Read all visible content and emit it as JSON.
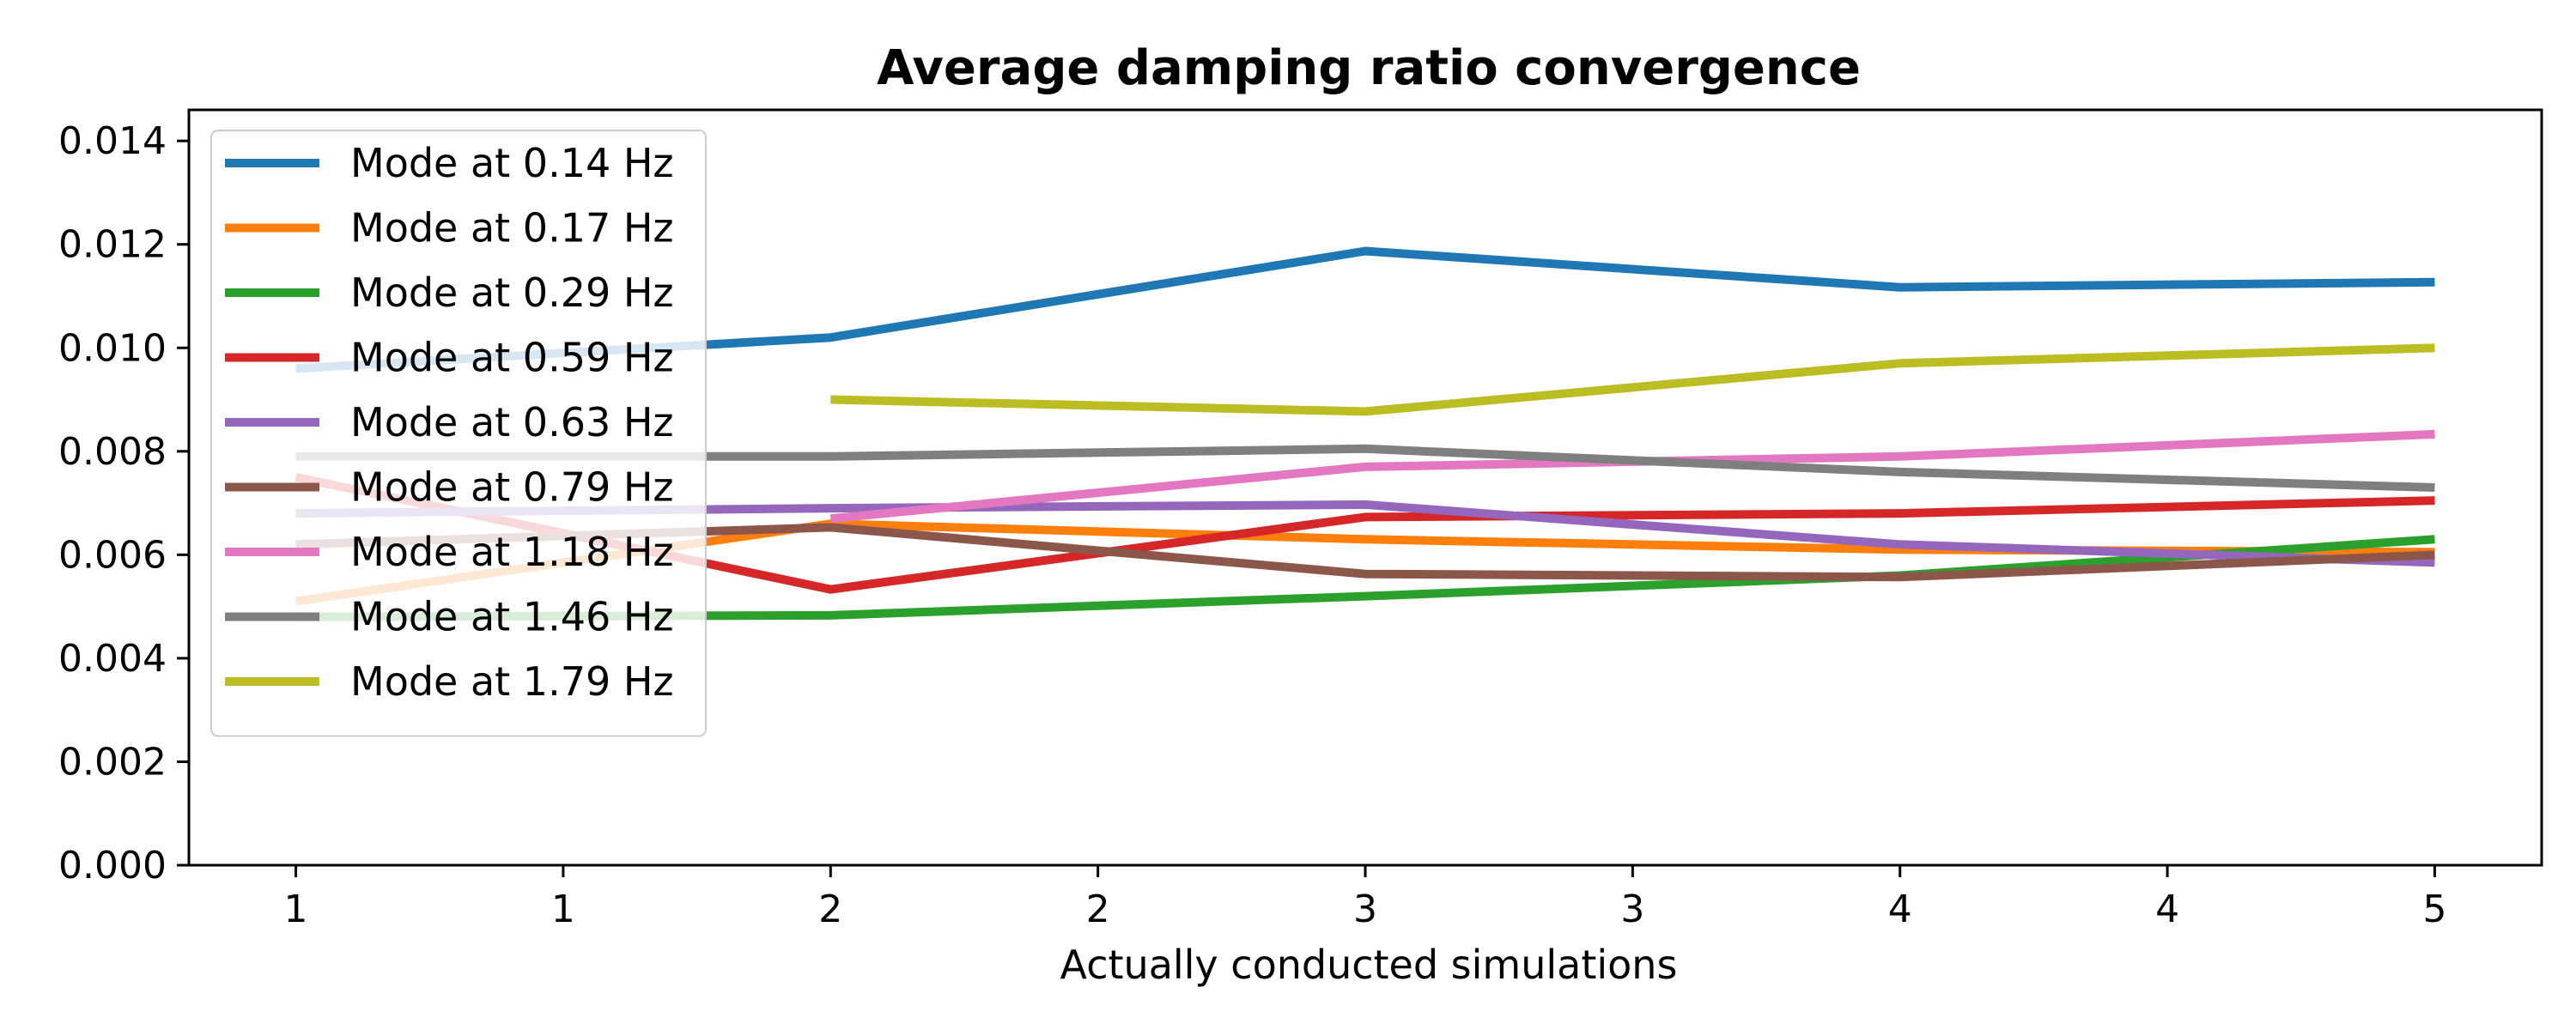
{
  "chart_data": {
    "type": "line",
    "title": "Average damping ratio convergence",
    "xlabel": "Actually conducted simulations",
    "ylabel": "",
    "x": [
      1,
      1.5,
      2,
      2.5,
      3,
      3.5,
      4,
      4.5,
      5
    ],
    "x_tick_labels": [
      "1",
      "1",
      "2",
      "2",
      "3",
      "3",
      "4",
      "4",
      "5"
    ],
    "xlim": [
      0.8,
      5.2
    ],
    "ylim": [
      0,
      0.0146
    ],
    "y_ticks": [
      0.0,
      0.002,
      0.004,
      0.006,
      0.008,
      0.01,
      0.012,
      0.014
    ],
    "y_tick_labels": [
      "0.000",
      "0.002",
      "0.004",
      "0.006",
      "0.008",
      "0.010",
      "0.012",
      "0.014"
    ],
    "grid": false,
    "legend_position": "top-left",
    "series": [
      {
        "name": "Mode at 0.14 Hz",
        "color": "#1f77b4",
        "points": [
          [
            1,
            0.0096
          ],
          [
            2,
            0.0102
          ],
          [
            3,
            0.01187
          ],
          [
            4,
            0.01117
          ],
          [
            5,
            0.01127
          ]
        ]
      },
      {
        "name": "Mode at 0.17 Hz",
        "color": "#ff7f0e",
        "points": [
          [
            1,
            0.0051
          ],
          [
            2,
            0.0066
          ],
          [
            3,
            0.0063
          ],
          [
            4,
            0.0061
          ],
          [
            5,
            0.00605
          ]
        ]
      },
      {
        "name": "Mode at 0.29 Hz",
        "color": "#2ca02c",
        "points": [
          [
            1,
            0.0048
          ],
          [
            2,
            0.00483
          ],
          [
            3,
            0.0052
          ],
          [
            4,
            0.0056
          ],
          [
            5,
            0.0063
          ]
        ]
      },
      {
        "name": "Mode at 0.59 Hz",
        "color": "#d62728",
        "points": [
          [
            1,
            0.0075
          ],
          [
            2,
            0.00533
          ],
          [
            3,
            0.00673
          ],
          [
            4,
            0.0068
          ],
          [
            5,
            0.00705
          ]
        ]
      },
      {
        "name": "Mode at 0.63 Hz",
        "color": "#9467bd",
        "points": [
          [
            1,
            0.0068
          ],
          [
            2,
            0.0069
          ],
          [
            3,
            0.00697
          ],
          [
            4,
            0.0062
          ],
          [
            5,
            0.00585
          ]
        ]
      },
      {
        "name": "Mode at 0.79 Hz",
        "color": "#8c564b",
        "points": [
          [
            1,
            0.0062
          ],
          [
            2,
            0.00653
          ],
          [
            3,
            0.00563
          ],
          [
            4,
            0.00557
          ],
          [
            5,
            0.006
          ]
        ]
      },
      {
        "name": "Mode at 1.18 Hz",
        "color": "#e377c2",
        "points": [
          [
            2,
            0.0067
          ],
          [
            3,
            0.0077
          ],
          [
            4,
            0.0079
          ],
          [
            5,
            0.00833
          ]
        ]
      },
      {
        "name": "Mode at 1.46 Hz",
        "color": "#7f7f7f",
        "points": [
          [
            1,
            0.0079
          ],
          [
            2,
            0.0079
          ],
          [
            3,
            0.00805
          ],
          [
            4,
            0.0076
          ],
          [
            5,
            0.0073
          ]
        ]
      },
      {
        "name": "Mode at 1.79 Hz",
        "color": "#bcbd22",
        "points": [
          [
            2,
            0.009
          ],
          [
            3,
            0.00877
          ],
          [
            4,
            0.0097
          ],
          [
            5,
            0.01
          ]
        ]
      }
    ]
  }
}
